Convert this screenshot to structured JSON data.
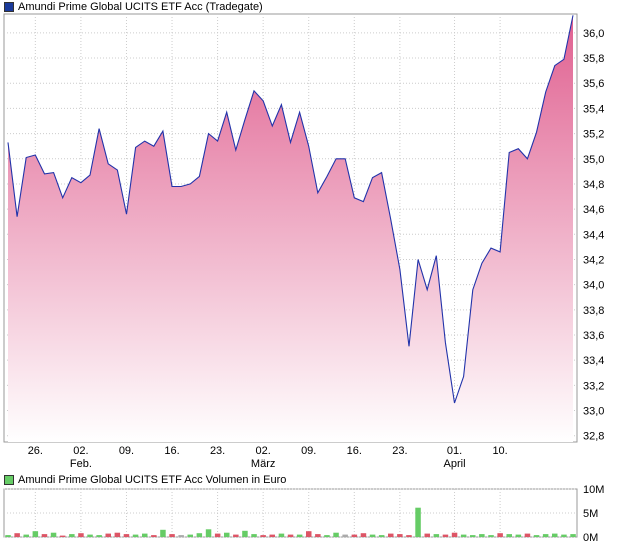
{
  "colors": {
    "price_line": "#2233aa",
    "price_fill_top": "#e06090",
    "price_fill_bottom": "#ffffff",
    "price_legend_swatch": "#1a3a9a",
    "volume_up": "#66cc66",
    "volume_down": "#dd5566",
    "volume_neutral": "#aaaaaa",
    "volume_legend_swatch": "#66cc66",
    "grid": "#cccccc"
  },
  "chart_data": [
    {
      "type": "area",
      "title": "Amundi Prime Global UCITS ETF Acc (Tradegate)",
      "x_tick_labels": [
        "26.",
        "02.",
        "09.",
        "16.",
        "23.",
        "02.",
        "09.",
        "16.",
        "23.",
        "01.",
        "10."
      ],
      "x_month_labels": [
        "Feb.",
        "März",
        "April"
      ],
      "y_tick_labels": [
        "32,8",
        "33,0",
        "33,2",
        "33,4",
        "33,6",
        "33,8",
        "34,0",
        "34,2",
        "34,4",
        "34,6",
        "34,8",
        "35,0",
        "35,2",
        "35,4",
        "35,6",
        "35,8",
        "36,0"
      ],
      "ylim": [
        32.75,
        36.15
      ],
      "grid": true,
      "series": [
        {
          "values": [
            35.13,
            34.54,
            35.01,
            35.03,
            34.88,
            34.89,
            34.69,
            34.85,
            34.81,
            34.87,
            35.24,
            34.96,
            34.91,
            34.56,
            35.09,
            35.14,
            35.1,
            35.22,
            34.78,
            34.78,
            34.8,
            34.86,
            35.2,
            35.14,
            35.37,
            35.07,
            35.31,
            35.54,
            35.46,
            35.26,
            35.43,
            35.13,
            35.37,
            35.1,
            34.73,
            34.86,
            35.0,
            35.0,
            34.69,
            34.66,
            34.85,
            34.89,
            34.52,
            34.12,
            33.51,
            34.2,
            33.96,
            34.23,
            33.54,
            33.06,
            33.27,
            33.96,
            34.17,
            34.29,
            34.26,
            35.05,
            35.08,
            35.0,
            35.21,
            35.53,
            35.74,
            35.79,
            36.14
          ]
        }
      ]
    },
    {
      "type": "bar",
      "title": "Amundi Prime Global UCITS ETF Acc Volumen in Euro",
      "y_tick_labels": [
        "0M",
        "5M",
        "10M"
      ],
      "ylim": [
        0,
        10
      ],
      "series": [
        {
          "values": [
            0.4,
            0.8,
            0.5,
            1.2,
            0.6,
            0.9,
            0.3,
            0.6,
            0.8,
            0.5,
            0.4,
            0.7,
            0.9,
            0.6,
            0.5,
            0.7,
            0.4,
            1.5,
            0.6,
            0.4,
            0.5,
            0.8,
            1.6,
            0.7,
            0.9,
            0.5,
            1.3,
            0.6,
            0.4,
            0.5,
            0.7,
            0.5,
            0.5,
            1.2,
            0.6,
            0.4,
            0.9,
            0.5,
            0.5,
            0.8,
            0.5,
            0.4,
            0.7,
            0.6,
            0.4,
            6.1,
            0.7,
            0.6,
            0.5,
            0.9,
            0.5,
            0.4,
            0.6,
            0.4,
            0.8,
            0.6,
            0.5,
            0.7,
            0.4,
            0.6,
            0.7,
            0.5,
            0.6
          ]
        }
      ]
    }
  ]
}
